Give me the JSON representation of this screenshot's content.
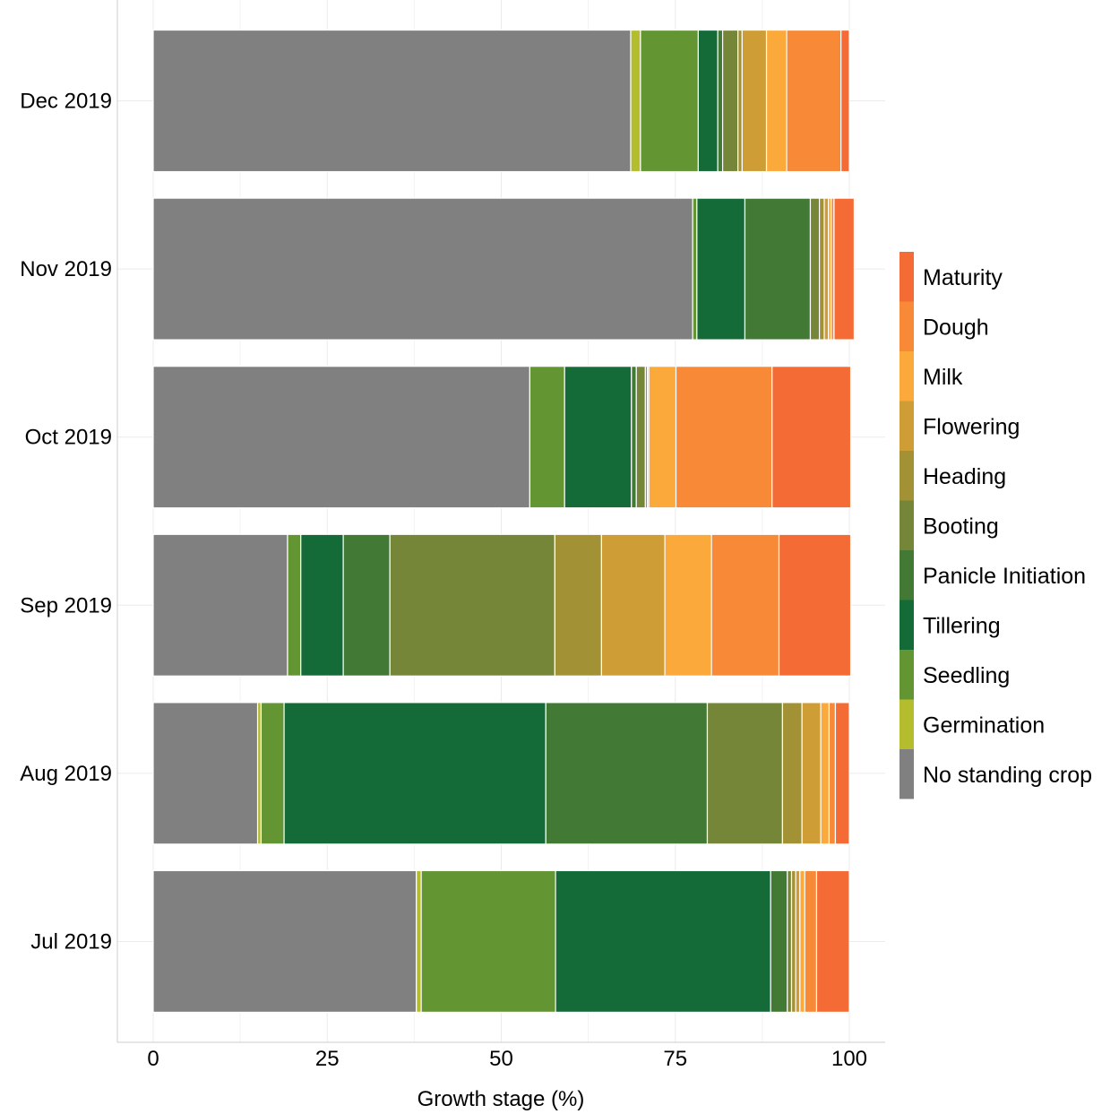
{
  "chart_data": {
    "type": "bar",
    "orientation": "horizontal",
    "stacked": true,
    "xlabel": "Growth stage (%)",
    "ylabel": "",
    "xlim": [
      0,
      100
    ],
    "x_ticks": [
      0,
      25,
      50,
      75,
      100
    ],
    "grid": true,
    "legend_position": "right",
    "categories": [
      "Dec 2019",
      "Nov 2019",
      "Oct 2019",
      "Sep 2019",
      "Aug 2019",
      "Jul 2019"
    ],
    "series": [
      {
        "name": "No standing crop",
        "color": "#808080",
        "values": [
          68.6,
          77.5,
          54.1,
          19.3,
          15.0,
          37.8
        ]
      },
      {
        "name": "Germination",
        "color": "#b3bd2e",
        "values": [
          1.4,
          0.0,
          0.0,
          0.0,
          0.5,
          0.7
        ]
      },
      {
        "name": "Seedling",
        "color": "#639533",
        "values": [
          8.3,
          0.6,
          5.0,
          1.9,
          3.3,
          19.3
        ]
      },
      {
        "name": "Tillering",
        "color": "#156b38",
        "values": [
          2.8,
          6.9,
          9.6,
          6.1,
          37.6,
          30.9
        ]
      },
      {
        "name": "Panicle Initiation",
        "color": "#427935",
        "values": [
          0.7,
          9.4,
          0.7,
          6.7,
          23.2,
          2.4
        ]
      },
      {
        "name": "Booting",
        "color": "#758638",
        "values": [
          2.2,
          1.3,
          1.3,
          23.7,
          10.8,
          0.6
        ]
      },
      {
        "name": "Heading",
        "color": "#a39136",
        "values": [
          0.6,
          0.7,
          0.3,
          6.7,
          2.8,
          0.6
        ]
      },
      {
        "name": "Flowering",
        "color": "#cf9d36",
        "values": [
          3.5,
          0.6,
          0.2,
          9.1,
          2.7,
          0.6
        ]
      },
      {
        "name": "Milk",
        "color": "#fca93c",
        "values": [
          2.9,
          0.4,
          3.9,
          6.7,
          1.2,
          0.7
        ]
      },
      {
        "name": "Dough",
        "color": "#f88936",
        "values": [
          7.8,
          0.4,
          13.8,
          9.7,
          0.9,
          1.7
        ]
      },
      {
        "name": "Maturity",
        "color": "#f46b35",
        "values": [
          1.2,
          2.9,
          11.3,
          10.3,
          2.0,
          4.7
        ]
      }
    ]
  }
}
